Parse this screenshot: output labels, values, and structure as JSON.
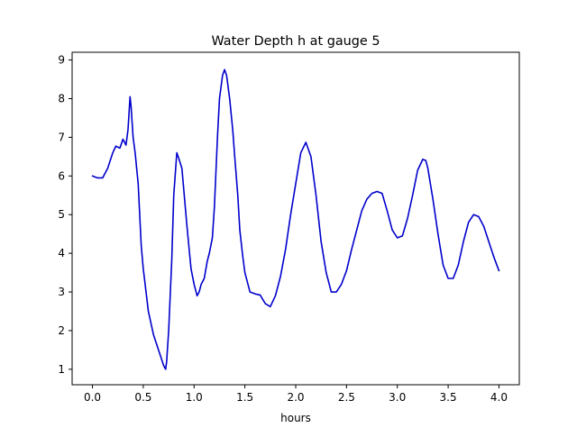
{
  "chart_data": {
    "type": "line",
    "title": "Water Depth h at gauge 5",
    "xlabel": "hours",
    "ylabel": "",
    "xlim": [
      -0.2,
      4.2
    ],
    "ylim": [
      0.6,
      9.2
    ],
    "xticks": [
      0.0,
      0.5,
      1.0,
      1.5,
      2.0,
      2.5,
      3.0,
      3.5,
      4.0
    ],
    "xtick_labels": [
      "0.0",
      "0.5",
      "1.0",
      "1.5",
      "2.0",
      "2.5",
      "3.0",
      "3.5",
      "4.0"
    ],
    "yticks": [
      1,
      2,
      3,
      4,
      5,
      6,
      7,
      8,
      9
    ],
    "ytick_labels": [
      "1",
      "2",
      "3",
      "4",
      "5",
      "6",
      "7",
      "8",
      "9"
    ],
    "grid": false,
    "legend": "none",
    "series": [
      {
        "color": "#0000cc",
        "x": [
          0.0,
          0.05,
          0.1,
          0.15,
          0.2,
          0.23,
          0.27,
          0.3,
          0.33,
          0.35,
          0.37,
          0.38,
          0.4,
          0.42,
          0.45,
          0.48,
          0.5,
          0.55,
          0.6,
          0.65,
          0.7,
          0.72,
          0.73,
          0.75,
          0.78,
          0.8,
          0.83,
          0.85,
          0.88,
          0.9,
          0.93,
          0.97,
          1.0,
          1.03,
          1.05,
          1.07,
          1.1,
          1.13,
          1.15,
          1.18,
          1.2,
          1.23,
          1.25,
          1.28,
          1.3,
          1.32,
          1.35,
          1.38,
          1.4,
          1.43,
          1.45,
          1.48,
          1.5,
          1.55,
          1.6,
          1.65,
          1.7,
          1.75,
          1.8,
          1.85,
          1.9,
          1.95,
          2.0,
          2.05,
          2.1,
          2.15,
          2.2,
          2.25,
          2.3,
          2.35,
          2.4,
          2.45,
          2.5,
          2.55,
          2.6,
          2.65,
          2.7,
          2.75,
          2.8,
          2.85,
          2.9,
          2.95,
          3.0,
          3.05,
          3.1,
          3.15,
          3.2,
          3.25,
          3.28,
          3.3,
          3.35,
          3.4,
          3.45,
          3.5,
          3.55,
          3.6,
          3.65,
          3.7,
          3.75,
          3.8,
          3.85,
          3.9,
          3.95,
          4.0
        ],
        "y": [
          6.0,
          5.95,
          5.95,
          6.2,
          6.6,
          6.77,
          6.72,
          6.95,
          6.8,
          7.2,
          8.05,
          7.8,
          7.0,
          6.6,
          5.8,
          4.2,
          3.6,
          2.5,
          1.9,
          1.5,
          1.1,
          1.0,
          1.2,
          2.0,
          3.8,
          5.5,
          6.6,
          6.45,
          6.2,
          5.6,
          4.7,
          3.6,
          3.2,
          2.9,
          3.0,
          3.2,
          3.35,
          3.8,
          4.0,
          4.4,
          5.2,
          7.0,
          8.0,
          8.6,
          8.75,
          8.6,
          8.0,
          7.2,
          6.5,
          5.5,
          4.6,
          3.9,
          3.5,
          3.0,
          2.95,
          2.92,
          2.7,
          2.62,
          2.9,
          3.4,
          4.1,
          5.0,
          5.8,
          6.6,
          6.87,
          6.5,
          5.5,
          4.3,
          3.5,
          3.0,
          3.0,
          3.2,
          3.55,
          4.1,
          4.6,
          5.1,
          5.4,
          5.55,
          5.6,
          5.55,
          5.1,
          4.6,
          4.4,
          4.45,
          4.9,
          5.5,
          6.15,
          6.43,
          6.4,
          6.2,
          5.4,
          4.5,
          3.7,
          3.35,
          3.35,
          3.7,
          4.3,
          4.8,
          5.0,
          4.95,
          4.7,
          4.3,
          3.9,
          3.55
        ]
      }
    ]
  }
}
